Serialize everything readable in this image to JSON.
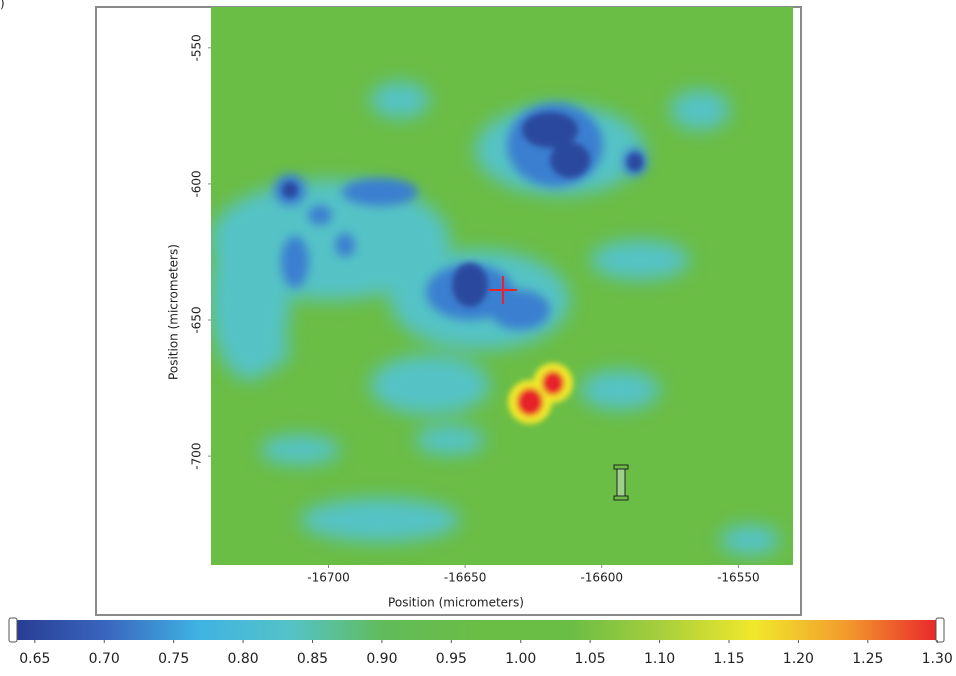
{
  "chart_data": {
    "type": "heatmap",
    "corner_label": ")",
    "xlabel": "Position (micrometers)",
    "ylabel": "Position (micrometers)",
    "xlim": [
      -16743,
      -16530
    ],
    "xticks": [
      -16700,
      -16650,
      -16600,
      -16550
    ],
    "ylim": [
      -740,
      -535
    ],
    "yticks": [
      -550,
      -600,
      -650,
      -700
    ],
    "colorbar": {
      "lim": [
        0.635,
        1.302
      ],
      "ticks": [
        0.65,
        {
          "value": 0.7,
          "label": "0.70"
        },
        0.75,
        {
          "value": 0.8,
          "label": "0.80"
        },
        0.85,
        {
          "value": 0.9,
          "label": "0.90"
        },
        0.95,
        {
          "value": 1,
          "label": "1.00"
        },
        1.05,
        {
          "value": 1.1,
          "label": "1.10"
        },
        1.15,
        {
          "value": 1.2,
          "label": "1.20"
        },
        1.25,
        {
          "value": 1.3,
          "label": "1.30"
        }
      ],
      "colormap": [
        "#283c93",
        "#3a66bf",
        "#3fb3e3",
        "#55c3c6",
        "#62bb5a",
        "#6abd45",
        "#6abd45",
        "#a8cf3c",
        "#f1e82b",
        "#f29a2c",
        "#e8232b"
      ]
    }
  }
}
